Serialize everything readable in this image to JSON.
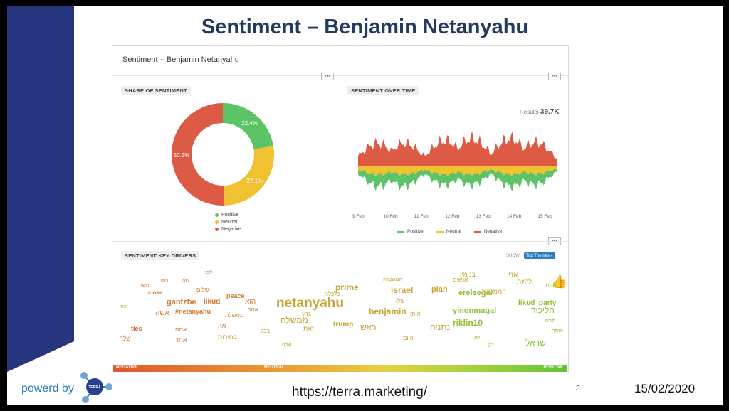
{
  "slide": {
    "title": "Sentiment – Benjamin Netanyahu",
    "footer_brand": "powerd by",
    "logo_text": "TERRA",
    "url": "https://terra.marketing/",
    "page_number": "3",
    "date": "15/02/2020"
  },
  "dashboard": {
    "title": "Sentiment – Benjamin Netanyahu",
    "more_label": "▪▪▪",
    "share_panel": {
      "label": "SHARE OF SENTIMENT",
      "legend": [
        "Positive",
        "Neutral",
        "Negative"
      ]
    },
    "time_panel": {
      "label": "SENTIMENT OVER TIME",
      "results_label": "Results",
      "results_value": "39.7K",
      "x_ticks": [
        "9 Feb",
        "10 Feb",
        "11 Feb",
        "12 Feb",
        "13 Feb",
        "14 Feb",
        "15 Feb"
      ],
      "legend": [
        "Positive",
        "Neutral",
        "Negative"
      ]
    },
    "drivers_panel": {
      "label": "SENTIMENT KEY DRIVERS",
      "show_label": "SHOW",
      "show_value": "Top Themes ▾",
      "scale_labels": [
        "NEGATIVE",
        "NEUTRAL",
        "POSITIVE"
      ],
      "thumb_icon": "thumbs-up-icon"
    },
    "colors": {
      "positive": "#5cc466",
      "neutral": "#f0c131",
      "negative": "#dd5a44"
    }
  },
  "chart_data": [
    {
      "type": "pie",
      "title": "SHARE OF SENTIMENT",
      "labels": [
        "Positive",
        "Neutral",
        "Negative"
      ],
      "values": [
        22.4,
        27.1,
        50.5
      ],
      "value_labels": [
        "22.4%",
        "27.1%",
        "50.5%"
      ],
      "colors": [
        "#5cc466",
        "#f0c131",
        "#dd5a44"
      ],
      "donut": true,
      "legend": "bottom"
    },
    {
      "type": "area",
      "title": "SENTIMENT OVER TIME",
      "x": [
        "9 Feb",
        "10 Feb",
        "11 Feb",
        "12 Feb",
        "13 Feb",
        "14 Feb",
        "15 Feb"
      ],
      "series": [
        {
          "name": "Positive",
          "values": [
            3,
            6,
            3,
            5,
            3,
            6,
            2
          ]
        },
        {
          "name": "Neutral",
          "values": [
            3,
            5,
            3,
            5,
            3,
            5,
            2
          ]
        },
        {
          "name": "Negative",
          "values": [
            4,
            6,
            4,
            7,
            5,
            7,
            3
          ]
        }
      ],
      "legend": "bottom"
    }
  ],
  "word_cloud": [
    {
      "t": "netanyahu",
      "c": "#c9a436",
      "s": 19,
      "b": 1
    },
    {
      "t": "benjamin",
      "c": "#c9a436",
      "s": 12,
      "b": 1
    },
    {
      "t": "prime",
      "c": "#c9a436",
      "s": 12,
      "b": 1
    },
    {
      "t": "israel",
      "c": "#c9a436",
      "s": 12,
      "b": 1
    },
    {
      "t": "plan",
      "c": "#c9a436",
      "s": 11,
      "b": 1
    },
    {
      "t": "trump",
      "c": "#c9a436",
      "s": 10,
      "b": 1
    },
    {
      "t": "gantzbe",
      "c": "#d07a2f",
      "s": 11,
      "b": 1
    },
    {
      "t": "likud",
      "c": "#d07a2f",
      "s": 10,
      "b": 1
    },
    {
      "t": "peace",
      "c": "#d07a2f",
      "s": 9,
      "b": 1
    },
    {
      "t": "close",
      "c": "#d07a2f",
      "s": 8,
      "b": 1
    },
    {
      "t": "#netanyahu",
      "c": "#d07a2f",
      "s": 9,
      "b": 1
    },
    {
      "t": "ties",
      "c": "#d35a2f",
      "s": 9,
      "b": 1
    },
    {
      "t": "yinonmagal",
      "c": "#8fbf2f",
      "s": 11,
      "b": 1
    },
    {
      "t": "erelsegal",
      "c": "#8fbf2f",
      "s": 11,
      "b": 1
    },
    {
      "t": "riklin10",
      "c": "#8fbf2f",
      "s": 12,
      "b": 1
    },
    {
      "t": "likud_party",
      "c": "#8fbf2f",
      "s": 10,
      "b": 1
    },
    {
      "t": "נתניהו",
      "c": "#c9a436",
      "s": 12,
      "b": 0
    },
    {
      "t": "ממשלה",
      "c": "#c9a436",
      "s": 12,
      "b": 0
    },
    {
      "t": "ראש",
      "c": "#c9a436",
      "s": 12,
      "b": 0
    },
    {
      "t": "הוא",
      "c": "#d07a2f",
      "s": 10,
      "b": 0
    },
    {
      "t": "הליכוד",
      "c": "#8fbf2f",
      "s": 12,
      "b": 0
    },
    {
      "t": "ישראל",
      "c": "#8fbf2f",
      "s": 12,
      "b": 0
    },
    {
      "t": "אני",
      "c": "#c9a436",
      "s": 11,
      "b": 0
    },
    {
      "t": "להיות",
      "c": "#c9a436",
      "s": 9,
      "b": 0
    },
    {
      "t": "הממשלה",
      "c": "#c9a436",
      "s": 9,
      "b": 0
    },
    {
      "t": "אשה",
      "c": "#d07a2f",
      "s": 10,
      "b": 0
    },
    {
      "t": "שלך",
      "c": "#d07a2f",
      "s": 9,
      "b": 0
    },
    {
      "t": "אחד",
      "c": "#d07a2f",
      "s": 9,
      "b": 0
    },
    {
      "t": "אין",
      "c": "#d07a2f",
      "s": 10,
      "b": 0
    },
    {
      "t": "גנץ",
      "c": "#c9a436",
      "s": 10,
      "b": 0
    },
    {
      "t": "ממשלת",
      "c": "#d07a2f",
      "s": 8,
      "b": 0
    },
    {
      "t": "בחירות",
      "c": "#c9a436",
      "s": 9,
      "b": 0
    },
    {
      "t": "שלום",
      "c": "#d07a2f",
      "s": 8,
      "b": 0
    },
    {
      "t": "היום",
      "c": "#c9a436",
      "s": 8,
      "b": 0
    },
    {
      "t": "אמר",
      "c": "#d07a2f",
      "s": 8,
      "b": 0
    },
    {
      "t": "אותו",
      "c": "#c9a436",
      "s": 8,
      "b": 0
    },
    {
      "t": "שבת",
      "c": "#8fbf2f",
      "s": 8,
      "b": 0
    },
    {
      "t": "אתם",
      "c": "#d07a2f",
      "s": 8,
      "b": 0
    },
    {
      "t": "שלו",
      "c": "#c9a436",
      "s": 8,
      "b": 0
    },
    {
      "t": "כלכלה",
      "c": "#c9a436",
      "s": 8,
      "b": 0
    },
    {
      "t": "בכל",
      "c": "#c9a436",
      "s": 8,
      "b": 0
    },
    {
      "t": "השר",
      "c": "#d07a2f",
      "s": 7,
      "b": 0
    },
    {
      "t": "רק",
      "c": "#c9a436",
      "s": 7,
      "b": 0
    },
    {
      "t": "עוד",
      "c": "#8fbf2f",
      "s": 7,
      "b": 0
    },
    {
      "t": "מה",
      "c": "#d07a2f",
      "s": 7,
      "b": 0
    },
    {
      "t": "כמו",
      "c": "#d07a2f",
      "s": 7,
      "b": 0
    },
    {
      "t": "שלנו",
      "c": "#c9a436",
      "s": 7,
      "b": 0
    },
    {
      "t": "אנשים",
      "c": "#c9a436",
      "s": 8,
      "b": 0
    },
    {
      "t": "לא",
      "c": "#c9a436",
      "s": 7,
      "b": 0
    },
    {
      "t": "תודה",
      "c": "#8fbf2f",
      "s": 7,
      "b": 0
    },
    {
      "t": "אותך",
      "c": "#8fbf2f",
      "s": 7,
      "b": 0
    },
    {
      "t": "בנימין",
      "c": "#c9a436",
      "s": 9,
      "b": 0
    },
    {
      "t": "זאת",
      "c": "#c9a436",
      "s": 9,
      "b": 0
    },
    {
      "t": "לפני",
      "c": "#d07a2f",
      "s": 7,
      "b": 0
    },
    {
      "t": "המשטרה",
      "c": "#c9a436",
      "s": 7,
      "b": 0
    }
  ]
}
